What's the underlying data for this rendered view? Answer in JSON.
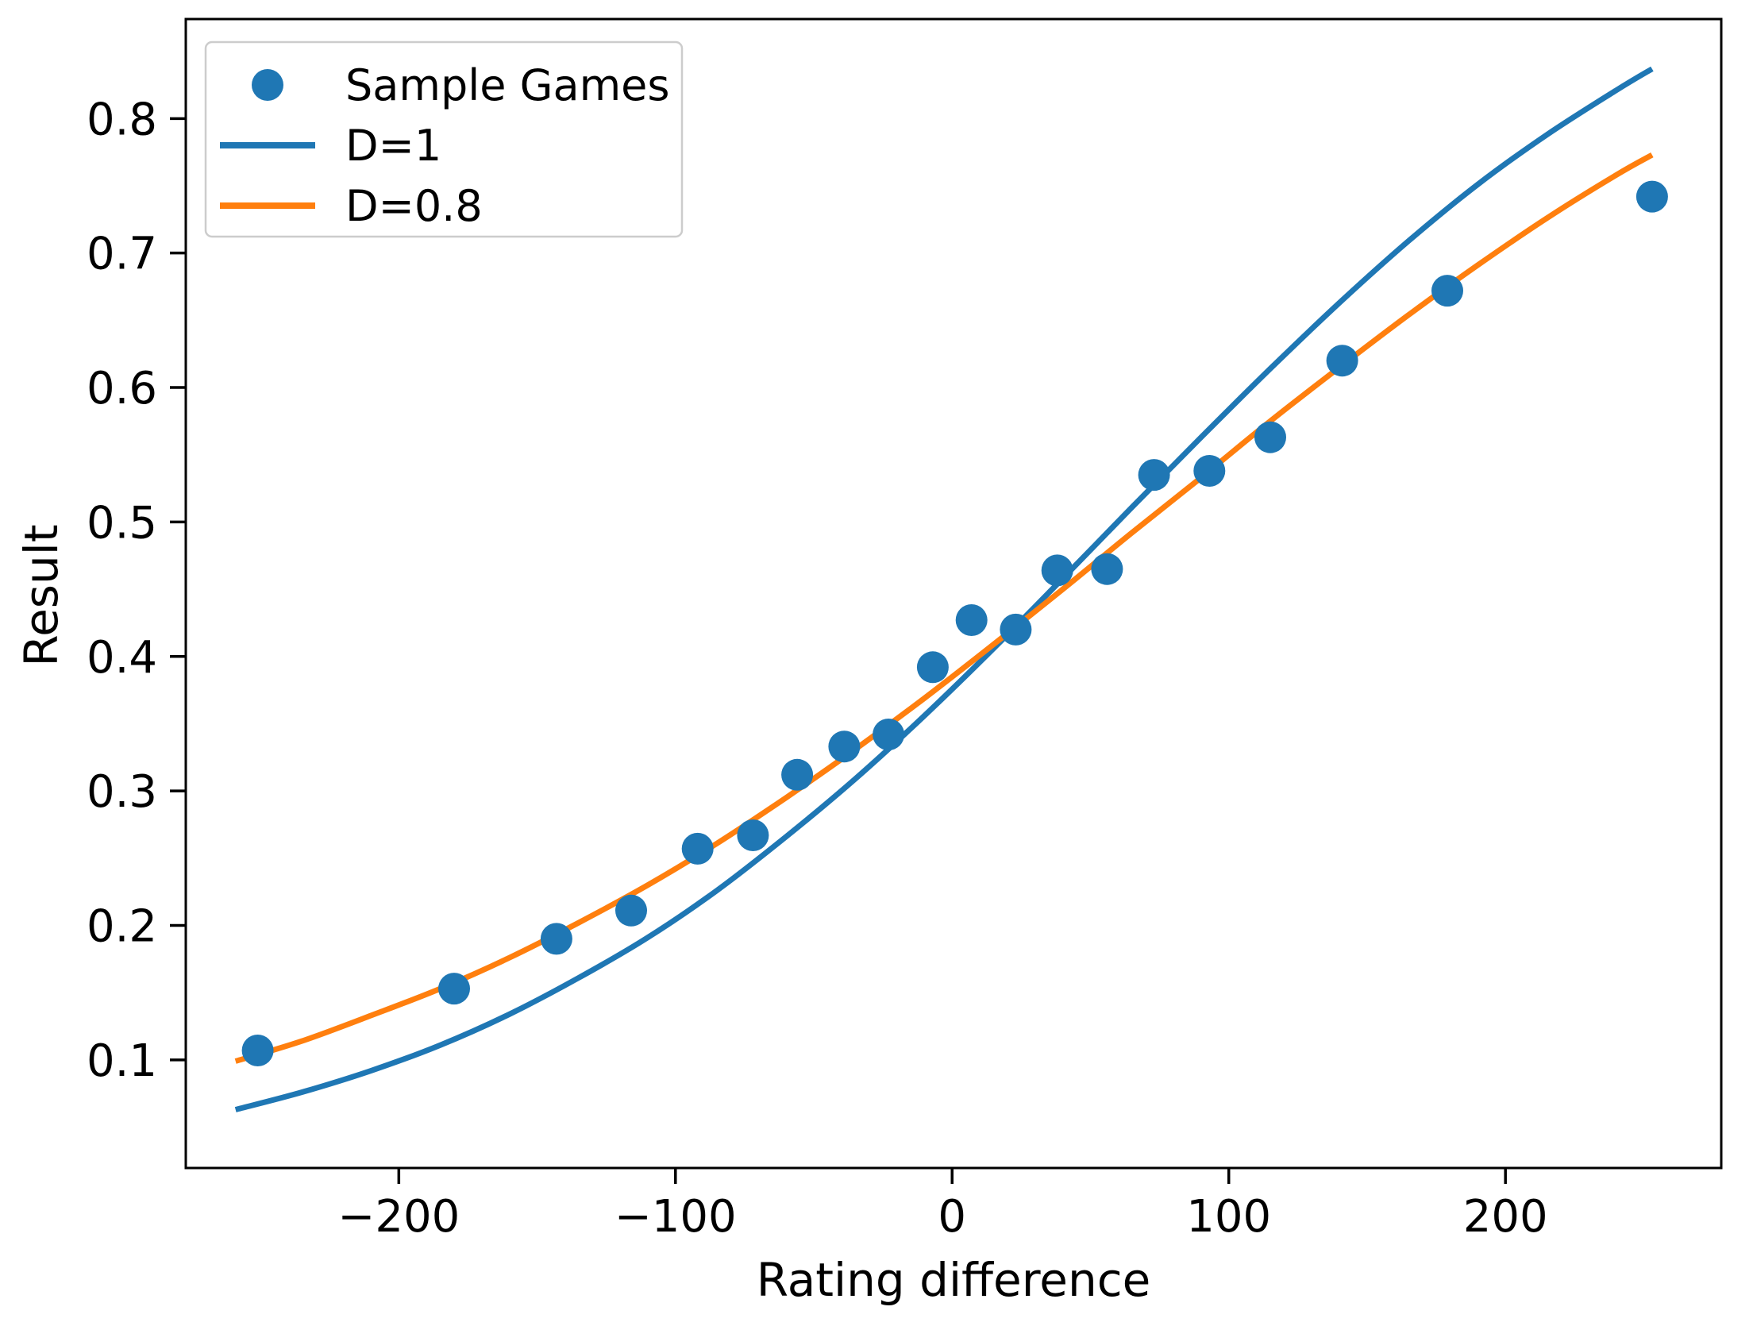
{
  "chart_data": {
    "type": "scatter",
    "title": "",
    "xlabel": "Rating difference",
    "ylabel": "Result",
    "xlim": [
      -277,
      278
    ],
    "ylim": [
      0.0196,
      0.874
    ],
    "grid": false,
    "x_ticks": [
      {
        "value": -200,
        "label": "−200"
      },
      {
        "value": -100,
        "label": "−100"
      },
      {
        "value": 0,
        "label": "0"
      },
      {
        "value": 100,
        "label": "100"
      },
      {
        "value": 200,
        "label": "200"
      }
    ],
    "y_ticks": [
      {
        "value": 0.1,
        "label": "0.1"
      },
      {
        "value": 0.2,
        "label": "0.2"
      },
      {
        "value": 0.3,
        "label": "0.3"
      },
      {
        "value": 0.4,
        "label": "0.4"
      },
      {
        "value": 0.5,
        "label": "0.5"
      },
      {
        "value": 0.6,
        "label": "0.6"
      },
      {
        "value": 0.7,
        "label": "0.7"
      },
      {
        "value": 0.8,
        "label": "0.8"
      }
    ],
    "legend": {
      "position": "upper-left",
      "items": [
        {
          "label": "Sample Games",
          "type": "marker",
          "color": "#1f77b4"
        },
        {
          "label": "D=1",
          "type": "line",
          "color": "#1f77b4"
        },
        {
          "label": "D=0.8",
          "type": "line",
          "color": "#ff7f0e"
        }
      ]
    },
    "series": [
      {
        "name": "Sample Games",
        "type": "scatter",
        "color": "#1f77b4",
        "marker": "circle",
        "points": [
          [
            -251,
            0.107
          ],
          [
            -180,
            0.153
          ],
          [
            -143,
            0.19
          ],
          [
            -116,
            0.211
          ],
          [
            -92,
            0.257
          ],
          [
            -72,
            0.267
          ],
          [
            -56,
            0.312
          ],
          [
            -39,
            0.333
          ],
          [
            -23,
            0.342
          ],
          [
            -7,
            0.392
          ],
          [
            7,
            0.427
          ],
          [
            23,
            0.42
          ],
          [
            38,
            0.464
          ],
          [
            56,
            0.465
          ],
          [
            73,
            0.535
          ],
          [
            93,
            0.538
          ],
          [
            115,
            0.563
          ],
          [
            141,
            0.62
          ],
          [
            179,
            0.672
          ],
          [
            253,
            0.742
          ]
        ]
      },
      {
        "name": "D=1",
        "type": "line",
        "color": "#1f77b4",
        "points": [
          [
            -259,
            0.063
          ],
          [
            -235,
            0.076
          ],
          [
            -210,
            0.092
          ],
          [
            -185,
            0.111
          ],
          [
            -160,
            0.134
          ],
          [
            -135,
            0.161
          ],
          [
            -110,
            0.191
          ],
          [
            -85,
            0.226
          ],
          [
            -60,
            0.266
          ],
          [
            -35,
            0.309
          ],
          [
            -10,
            0.356
          ],
          [
            15,
            0.406
          ],
          [
            40,
            0.458
          ],
          [
            65,
            0.511
          ],
          [
            90,
            0.563
          ],
          [
            115,
            0.614
          ],
          [
            140,
            0.663
          ],
          [
            165,
            0.709
          ],
          [
            190,
            0.751
          ],
          [
            215,
            0.788
          ],
          [
            240,
            0.821
          ],
          [
            253,
            0.837
          ]
        ]
      },
      {
        "name": "D=0.8",
        "type": "line",
        "color": "#ff7f0e",
        "points": [
          [
            -259,
            0.099
          ],
          [
            -235,
            0.114
          ],
          [
            -210,
            0.133
          ],
          [
            -185,
            0.153
          ],
          [
            -160,
            0.176
          ],
          [
            -135,
            0.202
          ],
          [
            -110,
            0.23
          ],
          [
            -85,
            0.261
          ],
          [
            -60,
            0.295
          ],
          [
            -35,
            0.331
          ],
          [
            -10,
            0.369
          ],
          [
            15,
            0.409
          ],
          [
            40,
            0.45
          ],
          [
            65,
            0.492
          ],
          [
            90,
            0.533
          ],
          [
            115,
            0.575
          ],
          [
            140,
            0.615
          ],
          [
            165,
            0.654
          ],
          [
            190,
            0.691
          ],
          [
            215,
            0.726
          ],
          [
            240,
            0.758
          ],
          [
            253,
            0.773
          ]
        ]
      }
    ]
  }
}
